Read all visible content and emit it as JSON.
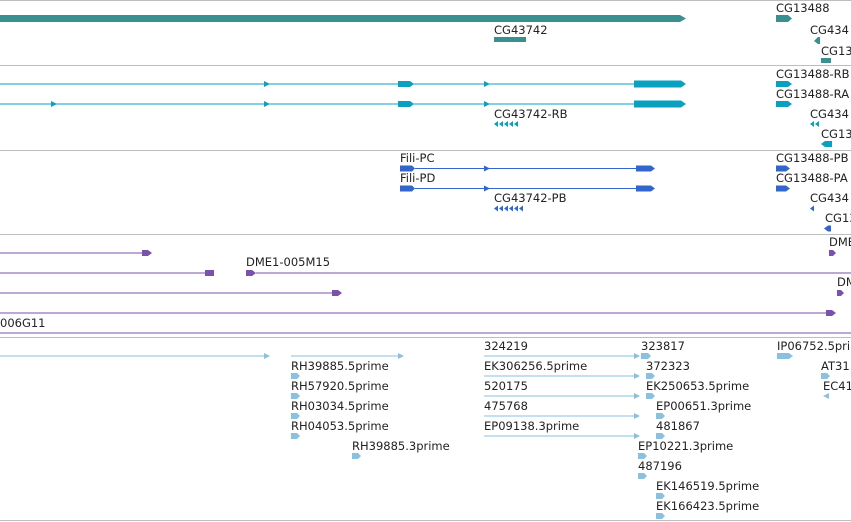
{
  "colors": {
    "gene": "#3a8f8f",
    "mrna": "#0aa0c0",
    "cds": "#3366cc",
    "bac": "#7b52ab",
    "est": "#8ac0e0",
    "separator": "#bdbdbd"
  },
  "tracks": {
    "gene": {
      "labels": [
        "CG13488",
        "CG43742",
        "CG434",
        "CG13"
      ]
    },
    "mrna": {
      "labels": [
        "CG13488-RB",
        "CG13488-RA",
        "CG43742-RB",
        "CG434",
        "CG13"
      ]
    },
    "cds": {
      "labels": [
        "Fili-PC",
        "Fili-PD",
        "CG13488-PB",
        "CG13488-PA",
        "CG43742-PB",
        "CG434",
        "CG13"
      ]
    },
    "bac": {
      "labels": [
        "DME1-005M15",
        "006G11",
        "DME",
        "DM"
      ]
    },
    "est": {
      "labels": [
        "324219",
        "323817",
        "IP06752.5prime",
        "RH39885.5prime",
        "EK306256.5prime",
        "372323",
        "AT31",
        "RH57920.5prime",
        "520175",
        "EK250653.5prime",
        "EC41",
        "RH03034.5prime",
        "475768",
        "EP00651.3prime",
        "RH04053.5prime",
        "EP09138.3prime",
        "481867",
        "RH39885.3prime",
        "EP10221.3prime",
        "487196",
        "EK146519.5prime",
        "EK166423.5prime"
      ]
    }
  }
}
